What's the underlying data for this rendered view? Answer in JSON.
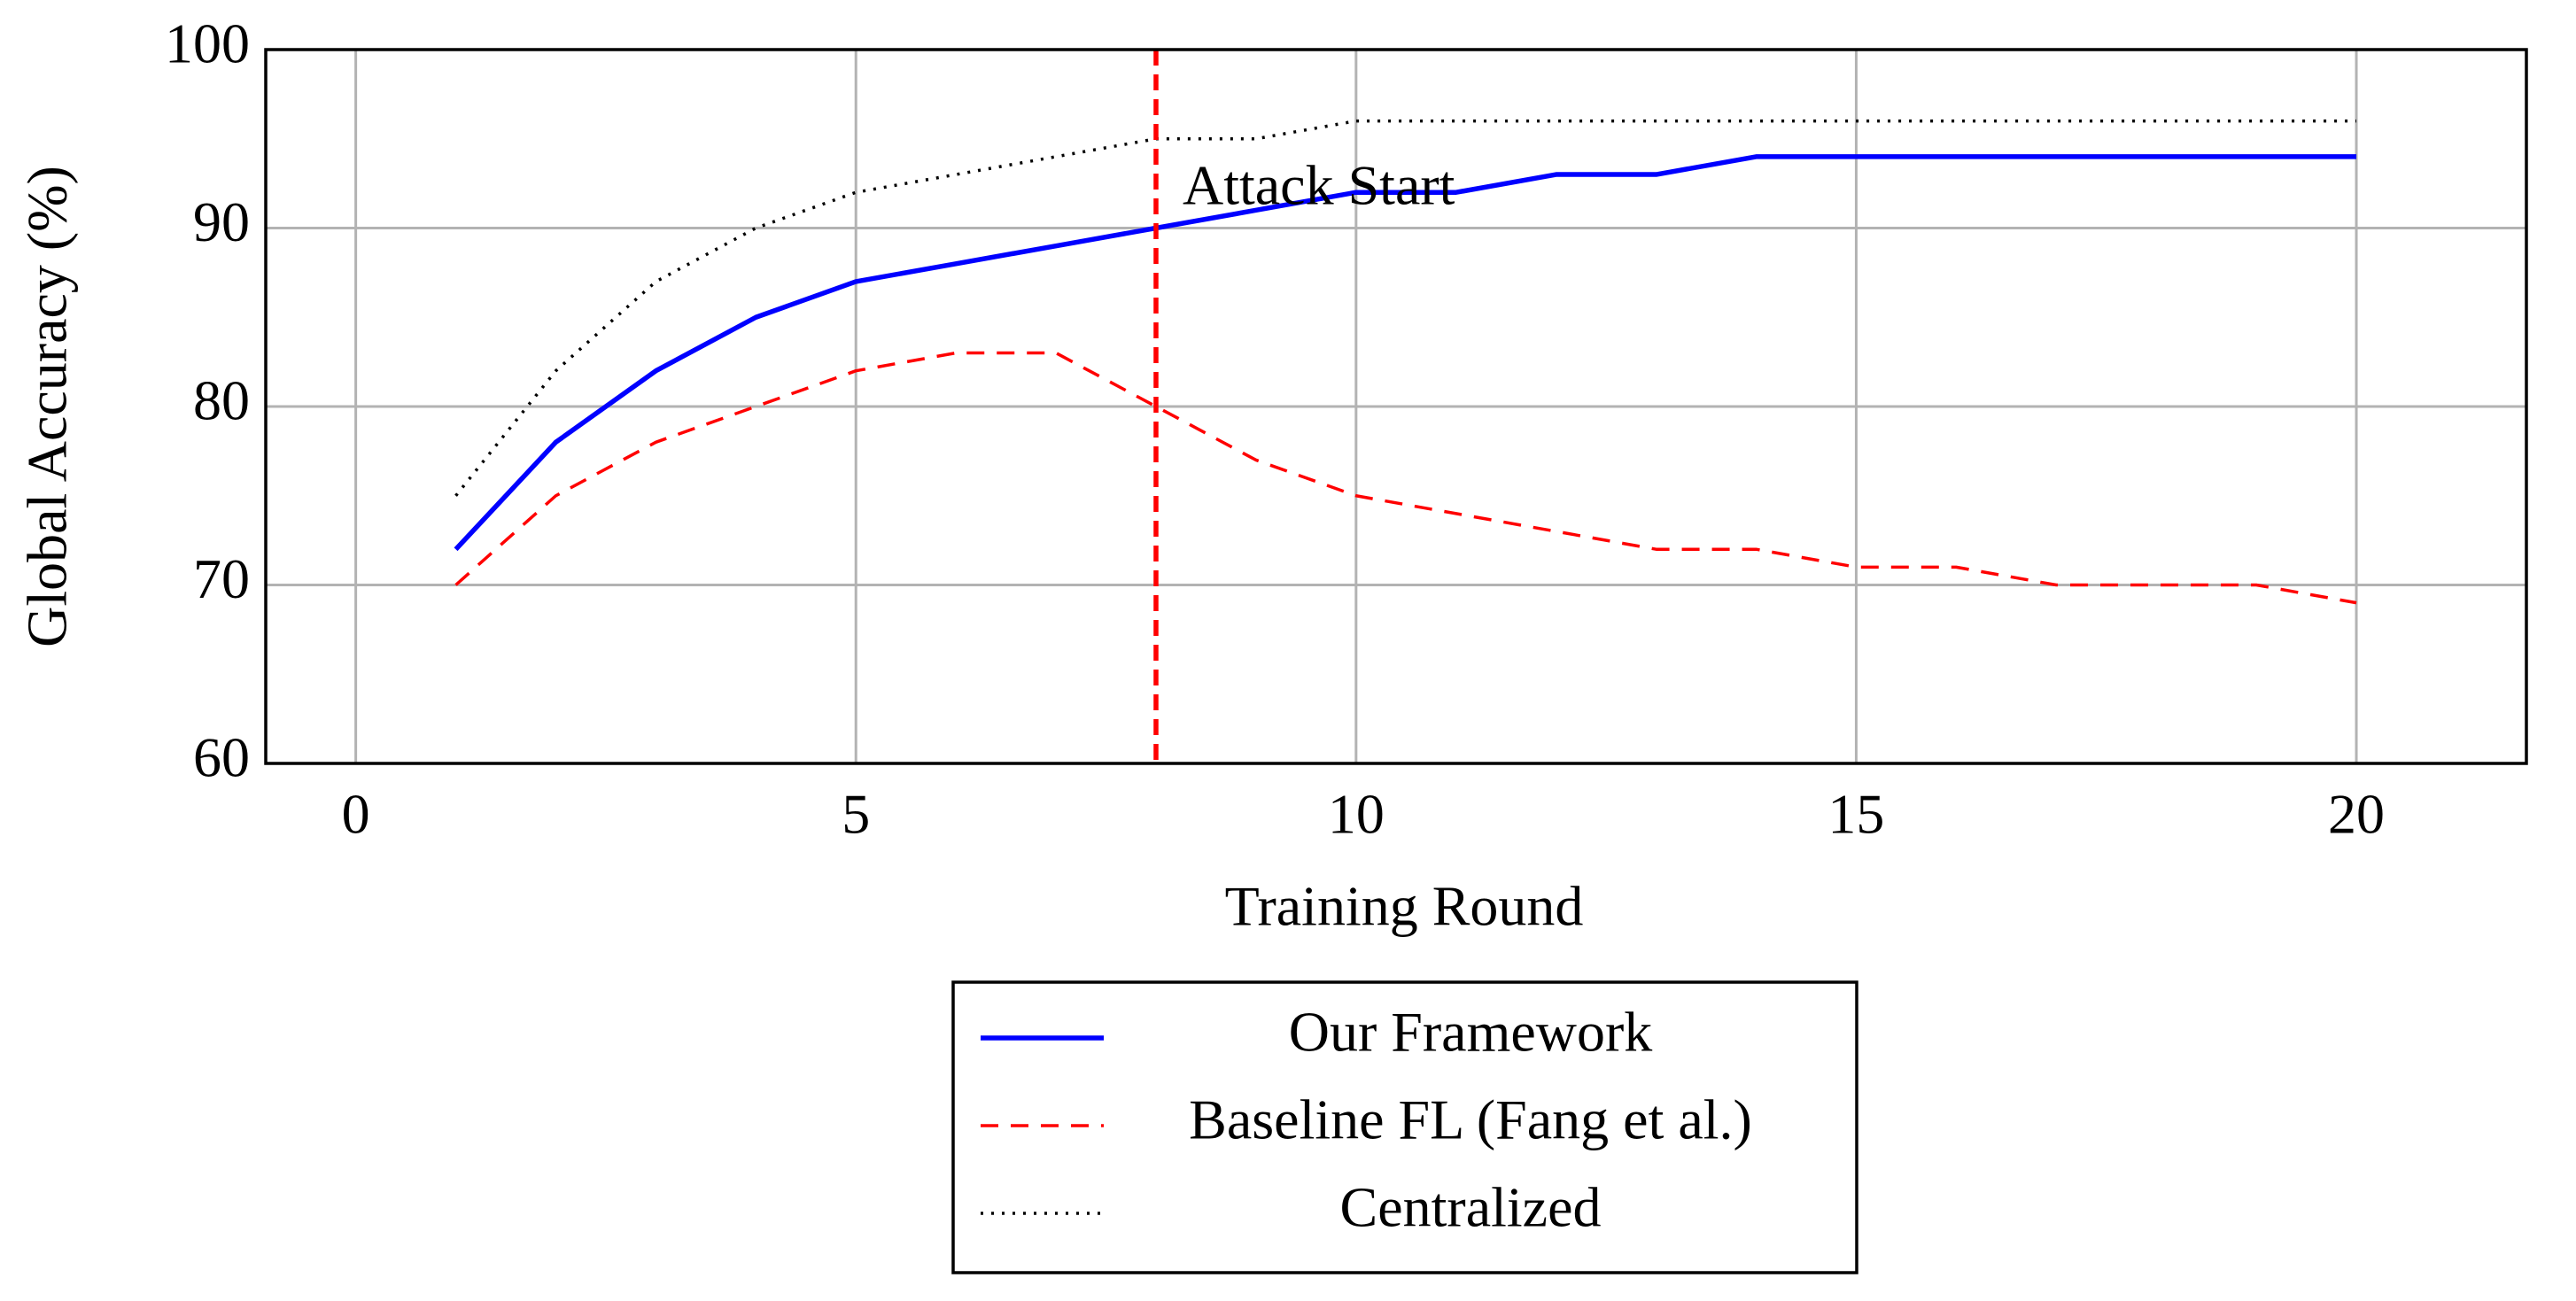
{
  "chart_data": {
    "type": "line",
    "x_label": "Training Round",
    "y_label": "Global Accuracy (%)",
    "x": [
      1,
      2,
      3,
      4,
      5,
      6,
      7,
      8,
      9,
      10,
      11,
      12,
      13,
      14,
      15,
      16,
      17,
      18,
      19,
      20
    ],
    "series": [
      {
        "name": "Our Framework",
        "color": "#0000ff",
        "style": "solid",
        "values": [
          72,
          78,
          82,
          85,
          87,
          88,
          89,
          90,
          91,
          92,
          92,
          93,
          93,
          94,
          94,
          94,
          94,
          94,
          94,
          94
        ]
      },
      {
        "name": "Baseline FL (Fang et al.)",
        "color": "#ff0000",
        "style": "dashed",
        "values": [
          70,
          75,
          78,
          80,
          82,
          83,
          83,
          80,
          77,
          75,
          74,
          73,
          72,
          72,
          71,
          71,
          70,
          70,
          70,
          69
        ]
      },
      {
        "name": "Centralized",
        "color": "#000000",
        "style": "dotted",
        "values": [
          75,
          82,
          87,
          90,
          92,
          93,
          94,
          95,
          95,
          96,
          96,
          96,
          96,
          96,
          96,
          96,
          96,
          96,
          96,
          96
        ]
      }
    ],
    "annotation": {
      "text": "Attack Start",
      "x": 8,
      "color": "#ff0000"
    },
    "xlim": [
      -0.9,
      21.7
    ],
    "ylim": [
      60,
      100
    ],
    "xticks": [
      0,
      5,
      10,
      15,
      20
    ],
    "yticks": [
      60,
      70,
      80,
      90,
      100
    ],
    "grid": true,
    "legend": "below"
  }
}
